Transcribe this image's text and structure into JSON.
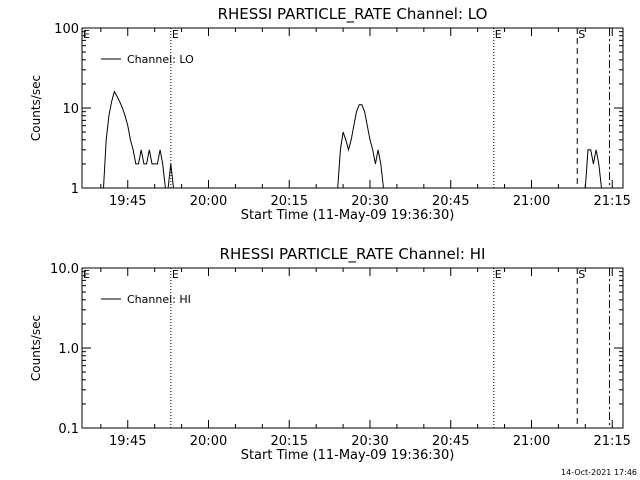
{
  "footer_timestamp": "14-Oct-2021 17:46",
  "colors": {
    "background": "#ffffff",
    "foreground": "#000000"
  },
  "chart_data": [
    {
      "type": "line",
      "title": "RHESSI PARTICLE_RATE Channel: LO",
      "xlabel": "Start Time (11-May-09 19:36:30)",
      "ylabel": "Counts/sec",
      "yscale": "log",
      "ylim": [
        1,
        100
      ],
      "yticks": [
        {
          "value": 1,
          "label": "1"
        },
        {
          "value": 10,
          "label": "10"
        },
        {
          "value": 100,
          "label": "100"
        }
      ],
      "xlim": [
        "19:36:30",
        "21:17:00"
      ],
      "xticks": [
        "19:45",
        "20:00",
        "20:15",
        "20:30",
        "20:45",
        "21:00",
        "21:15"
      ],
      "legend": {
        "position": "top-left",
        "entries": [
          "Channel: LO"
        ]
      },
      "markers": [
        {
          "time": "19:53:00",
          "style": "dotted",
          "label": "E"
        },
        {
          "time": "20:53:00",
          "style": "dotted",
          "label": "E"
        },
        {
          "time": "21:08:30",
          "style": "dashed",
          "label": "S"
        },
        {
          "time": "21:14:30",
          "style": "dashdot",
          "label": ""
        }
      ],
      "series": [
        {
          "name": "Channel: LO",
          "segments": [
            [
              [
                "19:40:30",
                1
              ],
              [
                "19:41:00",
                4
              ],
              [
                "19:41:30",
                8
              ],
              [
                "19:42:00",
                12
              ],
              [
                "19:42:30",
                16
              ],
              [
                "19:43:00",
                14
              ],
              [
                "19:43:30",
                12
              ],
              [
                "19:44:00",
                10
              ],
              [
                "19:44:30",
                8
              ],
              [
                "19:45:00",
                6
              ],
              [
                "19:45:30",
                4
              ],
              [
                "19:46:00",
                3
              ],
              [
                "19:46:30",
                2
              ],
              [
                "19:47:00",
                2
              ],
              [
                "19:47:30",
                3
              ],
              [
                "19:48:00",
                2
              ],
              [
                "19:48:30",
                2
              ],
              [
                "19:49:00",
                3
              ],
              [
                "19:49:30",
                2
              ],
              [
                "19:50:00",
                2
              ],
              [
                "19:50:30",
                2
              ],
              [
                "19:51:00",
                3
              ],
              [
                "19:51:30",
                2
              ],
              [
                "19:52:00",
                1
              ]
            ],
            [
              [
                "19:52:30",
                1
              ],
              [
                "19:53:00",
                2
              ],
              [
                "19:53:30",
                1
              ]
            ],
            [
              [
                "20:24:00",
                1
              ],
              [
                "20:24:30",
                3
              ],
              [
                "20:25:00",
                5
              ],
              [
                "20:25:30",
                4
              ],
              [
                "20:26:00",
                3
              ],
              [
                "20:26:30",
                4
              ],
              [
                "20:27:00",
                6
              ],
              [
                "20:27:30",
                9
              ],
              [
                "20:28:00",
                11
              ],
              [
                "20:28:30",
                11
              ],
              [
                "20:29:00",
                9
              ],
              [
                "20:29:30",
                6
              ],
              [
                "20:30:00",
                4
              ],
              [
                "20:30:30",
                3
              ],
              [
                "20:31:00",
                2
              ],
              [
                "20:31:30",
                3
              ],
              [
                "20:32:00",
                2
              ],
              [
                "20:32:30",
                1
              ]
            ],
            [
              [
                "21:10:00",
                1
              ],
              [
                "21:10:30",
                3
              ],
              [
                "21:11:00",
                3
              ],
              [
                "21:11:30",
                2
              ],
              [
                "21:12:00",
                3
              ],
              [
                "21:12:30",
                2
              ],
              [
                "21:13:00",
                1
              ]
            ]
          ]
        }
      ]
    },
    {
      "type": "line",
      "title": "RHESSI PARTICLE_RATE Channel: HI",
      "xlabel": "Start Time (11-May-09 19:36:30)",
      "ylabel": "Counts/sec",
      "yscale": "log",
      "ylim": [
        0.1,
        10
      ],
      "yticks": [
        {
          "value": 0.1,
          "label": "0.1"
        },
        {
          "value": 1,
          "label": "1.0"
        },
        {
          "value": 10,
          "label": "10.0"
        }
      ],
      "xlim": [
        "19:36:30",
        "21:17:00"
      ],
      "xticks": [
        "19:45",
        "20:00",
        "20:15",
        "20:30",
        "20:45",
        "21:00",
        "21:15"
      ],
      "legend": {
        "position": "top-left",
        "entries": [
          "Channel: HI"
        ]
      },
      "markers": [
        {
          "time": "19:53:00",
          "style": "dotted",
          "label": "E"
        },
        {
          "time": "20:53:00",
          "style": "dotted",
          "label": "E"
        },
        {
          "time": "21:08:30",
          "style": "dashed",
          "label": "S"
        },
        {
          "time": "21:14:30",
          "style": "dashdot",
          "label": ""
        }
      ],
      "series": [
        {
          "name": "Channel: HI",
          "segments": []
        }
      ]
    }
  ]
}
